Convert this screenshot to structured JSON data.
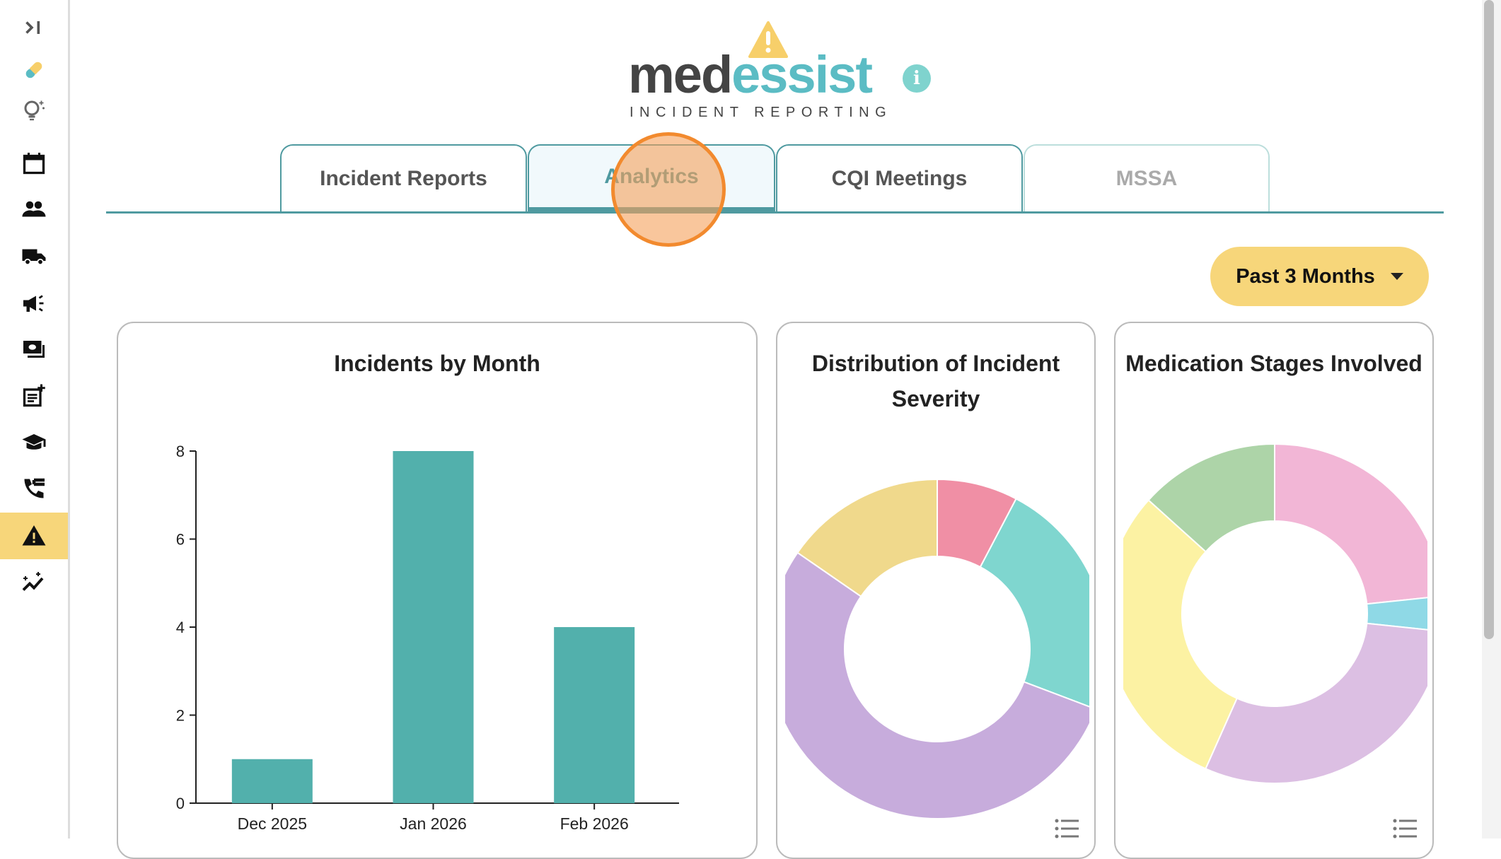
{
  "sidebar": {
    "items": [
      {
        "icon": "collapse-icon"
      },
      {
        "icon": "pill-icon"
      },
      {
        "icon": "lightbulb-sparkle-icon"
      },
      {
        "icon": "calendar-icon"
      },
      {
        "icon": "people-icon"
      },
      {
        "icon": "truck-icon"
      },
      {
        "icon": "megaphone-icon"
      },
      {
        "icon": "money-icon"
      },
      {
        "icon": "note-add-icon"
      },
      {
        "icon": "graduation-cap-icon"
      },
      {
        "icon": "phone-forward-icon"
      },
      {
        "icon": "warning-icon",
        "active": true
      },
      {
        "icon": "analytics-icon"
      }
    ],
    "active_color": "#f7d67a"
  },
  "header": {
    "logo_part1": "med",
    "logo_part2": "essist",
    "logo_subtitle": "INCIDENT REPORTING",
    "info_label": "i"
  },
  "tabs": [
    {
      "label": "Incident Reports"
    },
    {
      "label": "Analytics",
      "active": true
    },
    {
      "label": "CQI Meetings"
    },
    {
      "label": "MSSA",
      "disabled": true
    }
  ],
  "filter": {
    "selected": "Past 3 Months"
  },
  "chart_data": [
    {
      "type": "bar",
      "title": "Incidents by Month",
      "categories": [
        "Dec 2025",
        "Jan 2026",
        "Feb 2026"
      ],
      "values": [
        1,
        8,
        4
      ],
      "yticks": [
        0,
        2,
        4,
        6,
        8
      ],
      "ylim": [
        0,
        8
      ],
      "xlabel": "",
      "ylabel": "",
      "color": "#52b0ac"
    },
    {
      "type": "pie",
      "donut": true,
      "title": "Distribution of Incident Severity",
      "values": [
        1,
        3,
        7,
        2
      ],
      "colors": [
        "#f08fa5",
        "#7fd6cf",
        "#c7acdc",
        "#f0d98c"
      ]
    },
    {
      "type": "pie",
      "donut": true,
      "title": "Medication Stages Involved",
      "values": [
        7,
        1,
        9,
        9,
        4
      ],
      "colors": [
        "#f2b6d6",
        "#8fd9e6",
        "#dcbfe3",
        "#fcf2a3",
        "#add4a8"
      ]
    }
  ]
}
